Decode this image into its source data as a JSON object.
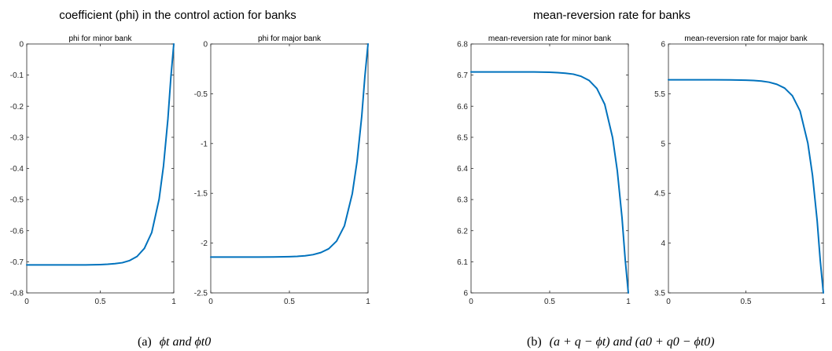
{
  "figure": {
    "suptitle_left": "coefficient (phi) in the control action for banks",
    "suptitle_right": "mean-reversion rate for banks",
    "caption_a_prefix": "(a)",
    "caption_a_math": "ϕt and ϕt0",
    "caption_b_prefix": "(b)",
    "caption_b_math": "(a + q − ϕt) and (a0 + q0 − ϕt0)"
  },
  "chart_data": [
    {
      "type": "line",
      "title": "phi for minor bank",
      "xlim": [
        0,
        1
      ],
      "ylim": [
        -0.8,
        0
      ],
      "xticks": [
        "0",
        "0.5",
        "1"
      ],
      "yticks": [
        "0",
        "-0.1",
        "-0.2",
        "-0.3",
        "-0.4",
        "-0.5",
        "-0.6",
        "-0.7",
        "-0.8"
      ],
      "series": [
        {
          "color": "#0072BD",
          "x": [
            0,
            0.1,
            0.2,
            0.3,
            0.4,
            0.5,
            0.55,
            0.6,
            0.65,
            0.7,
            0.75,
            0.8,
            0.85,
            0.9,
            0.93,
            0.96,
            0.98,
            1.0
          ],
          "values": [
            -0.71,
            -0.71,
            -0.71,
            -0.71,
            -0.71,
            -0.709,
            -0.708,
            -0.706,
            -0.703,
            -0.696,
            -0.683,
            -0.657,
            -0.606,
            -0.499,
            -0.392,
            -0.241,
            -0.108,
            0
          ]
        }
      ]
    },
    {
      "type": "line",
      "title": "phi for major bank",
      "xlim": [
        0,
        1
      ],
      "ylim": [
        -2.5,
        0
      ],
      "xticks": [
        "0",
        "0.5",
        "1"
      ],
      "yticks": [
        "0",
        "-0.5",
        "-1",
        "-1.5",
        "-2",
        "-2.5"
      ],
      "series": [
        {
          "color": "#0072BD",
          "x": [
            0,
            0.1,
            0.2,
            0.3,
            0.4,
            0.5,
            0.55,
            0.6,
            0.65,
            0.7,
            0.75,
            0.8,
            0.85,
            0.9,
            0.93,
            0.96,
            0.98,
            1.0
          ],
          "values": [
            -2.14,
            -2.14,
            -2.14,
            -2.14,
            -2.139,
            -2.136,
            -2.133,
            -2.127,
            -2.116,
            -2.095,
            -2.057,
            -1.98,
            -1.826,
            -1.503,
            -1.181,
            -0.726,
            -0.325,
            0
          ]
        }
      ]
    },
    {
      "type": "line",
      "title": "mean-reversion rate for minor bank",
      "xlim": [
        0,
        1
      ],
      "ylim": [
        6,
        6.8
      ],
      "xticks": [
        "0",
        "0.5",
        "1"
      ],
      "yticks": [
        "6.8",
        "6.7",
        "6.6",
        "6.5",
        "6.4",
        "6.3",
        "6.2",
        "6.1",
        "6"
      ],
      "series": [
        {
          "color": "#0072BD",
          "x": [
            0,
            0.1,
            0.2,
            0.3,
            0.4,
            0.5,
            0.55,
            0.6,
            0.65,
            0.7,
            0.75,
            0.8,
            0.85,
            0.9,
            0.93,
            0.96,
            0.98,
            1.0
          ],
          "values": [
            6.71,
            6.71,
            6.71,
            6.71,
            6.71,
            6.709,
            6.708,
            6.706,
            6.703,
            6.696,
            6.683,
            6.657,
            6.606,
            6.499,
            6.392,
            6.241,
            6.108,
            6.0
          ]
        }
      ]
    },
    {
      "type": "line",
      "title": "mean-reversion rate for major bank",
      "xlim": [
        0,
        1
      ],
      "ylim": [
        3.5,
        6
      ],
      "xticks": [
        "0",
        "0.5",
        "1"
      ],
      "yticks": [
        "6",
        "5.5",
        "5",
        "4.5",
        "4",
        "3.5"
      ],
      "series": [
        {
          "color": "#0072BD",
          "x": [
            0,
            0.1,
            0.2,
            0.3,
            0.4,
            0.5,
            0.55,
            0.6,
            0.65,
            0.7,
            0.75,
            0.8,
            0.85,
            0.9,
            0.93,
            0.96,
            0.98,
            1.0
          ],
          "values": [
            5.64,
            5.64,
            5.64,
            5.64,
            5.639,
            5.636,
            5.633,
            5.627,
            5.616,
            5.595,
            5.557,
            5.48,
            5.326,
            5.003,
            4.681,
            4.226,
            3.825,
            3.5
          ]
        }
      ]
    }
  ]
}
